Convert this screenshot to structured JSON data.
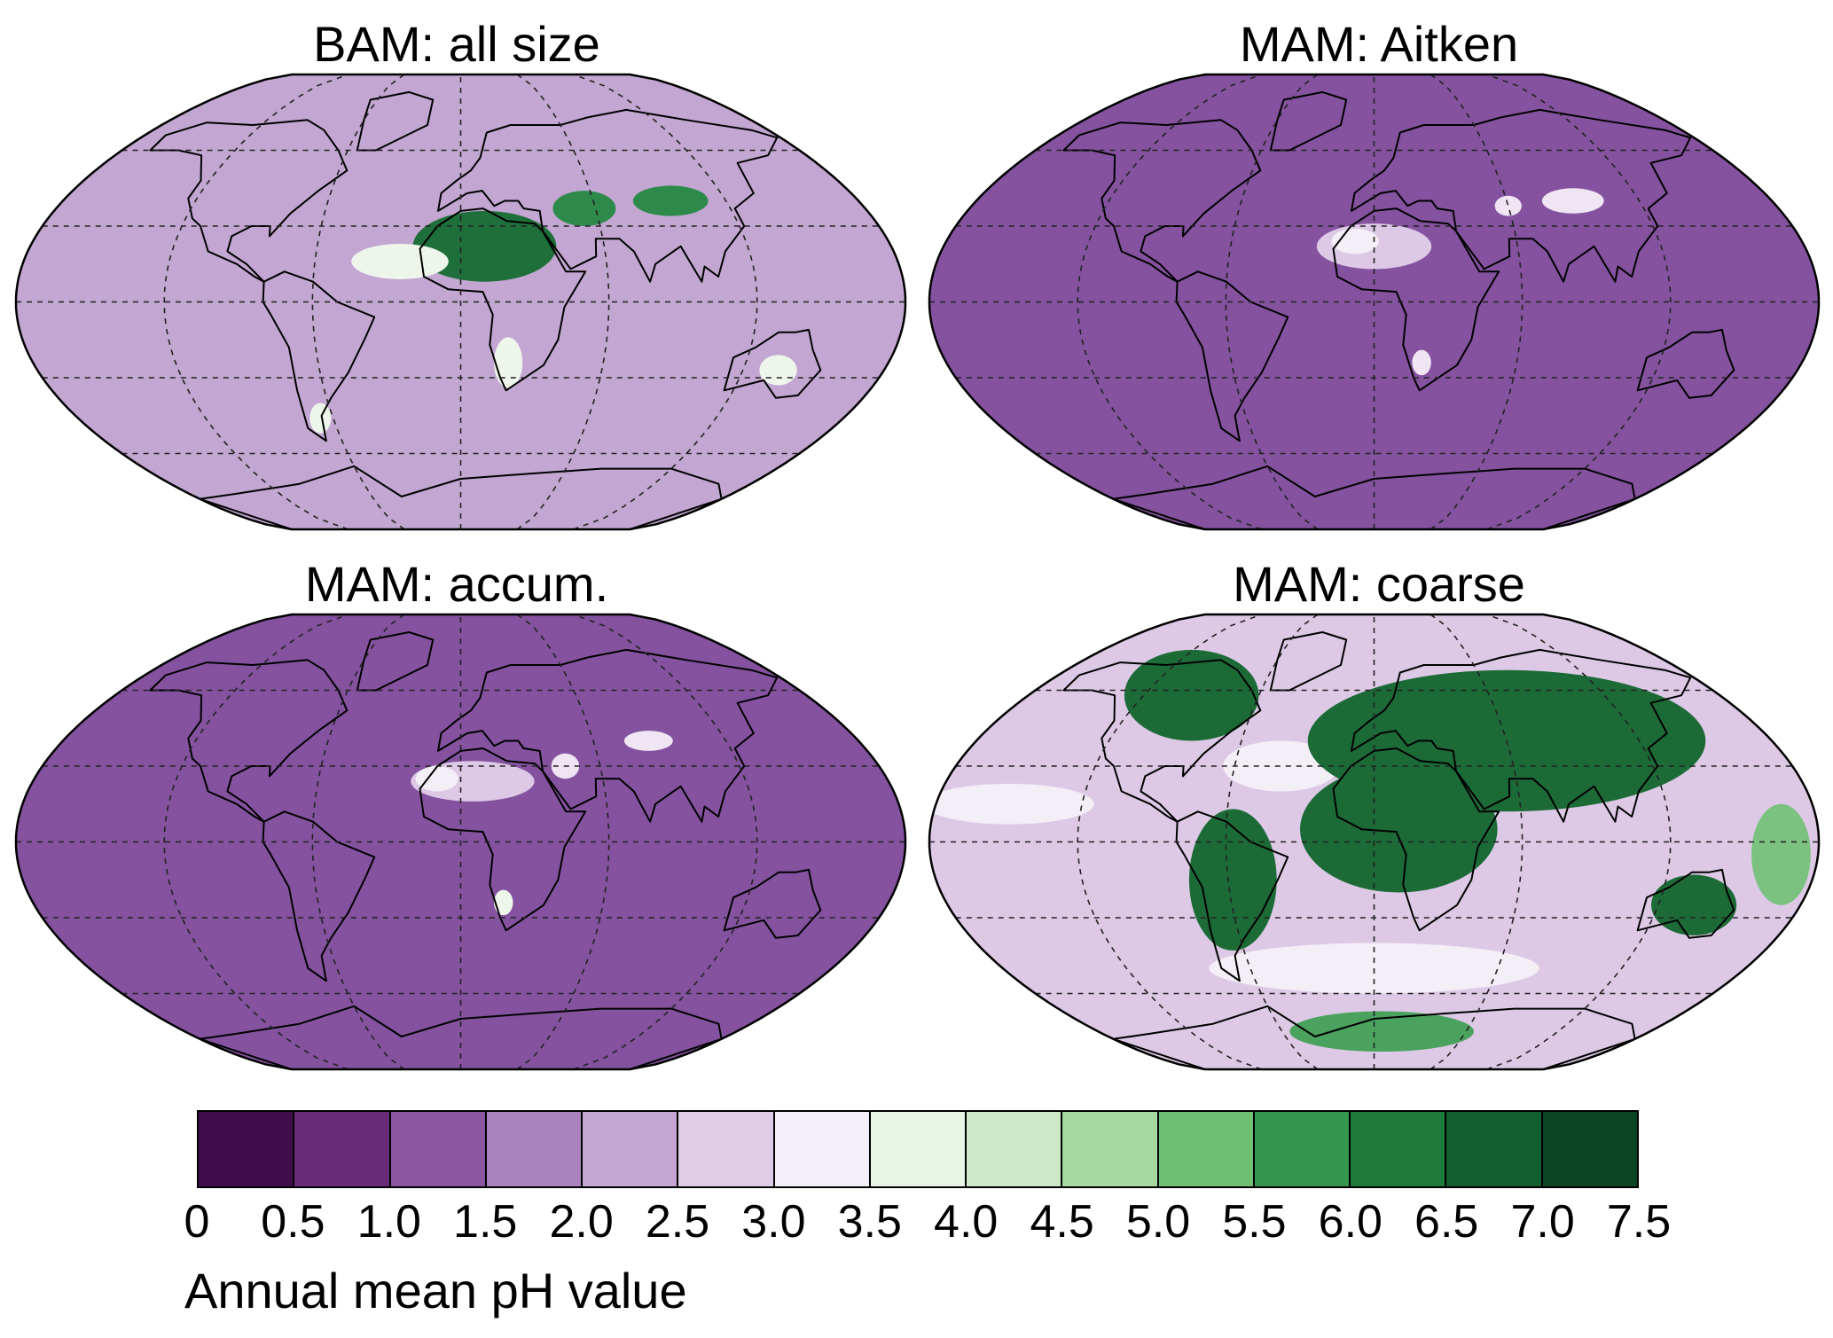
{
  "panels": [
    {
      "title": "BAM: all size",
      "base": "#c3a7d2",
      "blobs": [
        {
          "lon": 10,
          "lat": 22,
          "rlon": 30,
          "rlat": 14,
          "c": "#1f6f3a"
        },
        {
          "lon": 55,
          "lat": 37,
          "rlon": 14,
          "rlat": 7,
          "c": "#2d8a4a"
        },
        {
          "lon": 95,
          "lat": 40,
          "rlon": 17,
          "rlat": 6,
          "c": "#2d8a4a"
        },
        {
          "lon": -25,
          "lat": 16,
          "rlon": 20,
          "rlat": 7,
          "c": "#eef6ec"
        },
        {
          "lon": 20,
          "lat": -24,
          "rlon": 6,
          "rlat": 10,
          "c": "#eef6ec"
        },
        {
          "lon": 135,
          "lat": -27,
          "rlon": 8,
          "rlat": 6,
          "c": "#eef6ec"
        },
        {
          "lon": -66,
          "lat": -46,
          "rlon": 5,
          "rlat": 6,
          "c": "#eef6ec"
        }
      ]
    },
    {
      "title": "MAM: Aitken",
      "base": "#84529f",
      "blobs": [
        {
          "lon": 0,
          "lat": 22,
          "rlon": 24,
          "rlat": 9,
          "c": "#ddc9e6"
        },
        {
          "lon": -8,
          "lat": 24,
          "rlon": 10,
          "rlat": 5,
          "c": "#f4eef7"
        },
        {
          "lon": 90,
          "lat": 40,
          "rlon": 14,
          "rlat": 5,
          "c": "#efe5f3"
        },
        {
          "lon": 60,
          "lat": 38,
          "rlon": 6,
          "rlat": 4,
          "c": "#efe5f3"
        },
        {
          "lon": 20,
          "lat": -24,
          "rlon": 4,
          "rlat": 5,
          "c": "#efe5f3"
        }
      ]
    },
    {
      "title": "MAM: accum.",
      "base": "#84529f",
      "blobs": [
        {
          "lon": 5,
          "lat": 24,
          "rlon": 26,
          "rlat": 8,
          "c": "#ddc9e6"
        },
        {
          "lon": -10,
          "lat": 25,
          "rlon": 9,
          "rlat": 5,
          "c": "#f4eef7"
        },
        {
          "lon": 85,
          "lat": 40,
          "rlon": 11,
          "rlat": 4,
          "c": "#efe5f3"
        },
        {
          "lon": 45,
          "lat": 30,
          "rlon": 6,
          "rlat": 5,
          "c": "#efe5f3"
        },
        {
          "lon": 18,
          "lat": -24,
          "rlon": 4,
          "rlat": 5,
          "c": "#eef6ec"
        }
      ]
    },
    {
      "title": "MAM: coarse",
      "base": "#ddc9e6",
      "blobs": [
        {
          "lon": -150,
          "lat": 15,
          "rlon": 35,
          "rlat": 8,
          "c": "#f4eef7"
        },
        {
          "lon": -40,
          "lat": 30,
          "rlon": 25,
          "rlat": 10,
          "c": "#f4eef7"
        },
        {
          "lon": 0,
          "lat": -50,
          "rlon": 80,
          "rlat": 10,
          "c": "#f4eef7"
        },
        {
          "lon": 60,
          "lat": 40,
          "rlon": 90,
          "rlat": 28,
          "c": "#1c6b37"
        },
        {
          "lon": -95,
          "lat": 58,
          "rlon": 35,
          "rlat": 18,
          "c": "#1c6b37"
        },
        {
          "lon": 10,
          "lat": 5,
          "rlon": 40,
          "rlat": 25,
          "c": "#1c6b37"
        },
        {
          "lon": -58,
          "lat": -15,
          "rlon": 18,
          "rlat": 28,
          "c": "#1c6b37"
        },
        {
          "lon": 135,
          "lat": -25,
          "rlon": 18,
          "rlat": 12,
          "c": "#1c6b37"
        },
        {
          "lon": 5,
          "lat": -75,
          "rlon": 60,
          "rlat": 8,
          "c": "#4aa25e"
        },
        {
          "lon": 165,
          "lat": -5,
          "rlon": 12,
          "rlat": 20,
          "c": "#7bc17f"
        }
      ]
    }
  ],
  "colorbar": {
    "colors": [
      "#3f0d4c",
      "#6a2c7a",
      "#8b55a1",
      "#a983bd",
      "#c5a6d3",
      "#e0cde7",
      "#f4eef7",
      "#e8f5e4",
      "#cce8c6",
      "#a5d8a0",
      "#6fbf72",
      "#34964f",
      "#1c7a3b",
      "#125e2e",
      "#0a4422"
    ],
    "ticks": [
      "0",
      "0.5",
      "1.0",
      "1.5",
      "2.0",
      "2.5",
      "3.0",
      "3.5",
      "4.0",
      "4.5",
      "5.0",
      "5.5",
      "6.0",
      "6.5",
      "7.0",
      "7.5"
    ],
    "label": "Annual mean pH value"
  }
}
